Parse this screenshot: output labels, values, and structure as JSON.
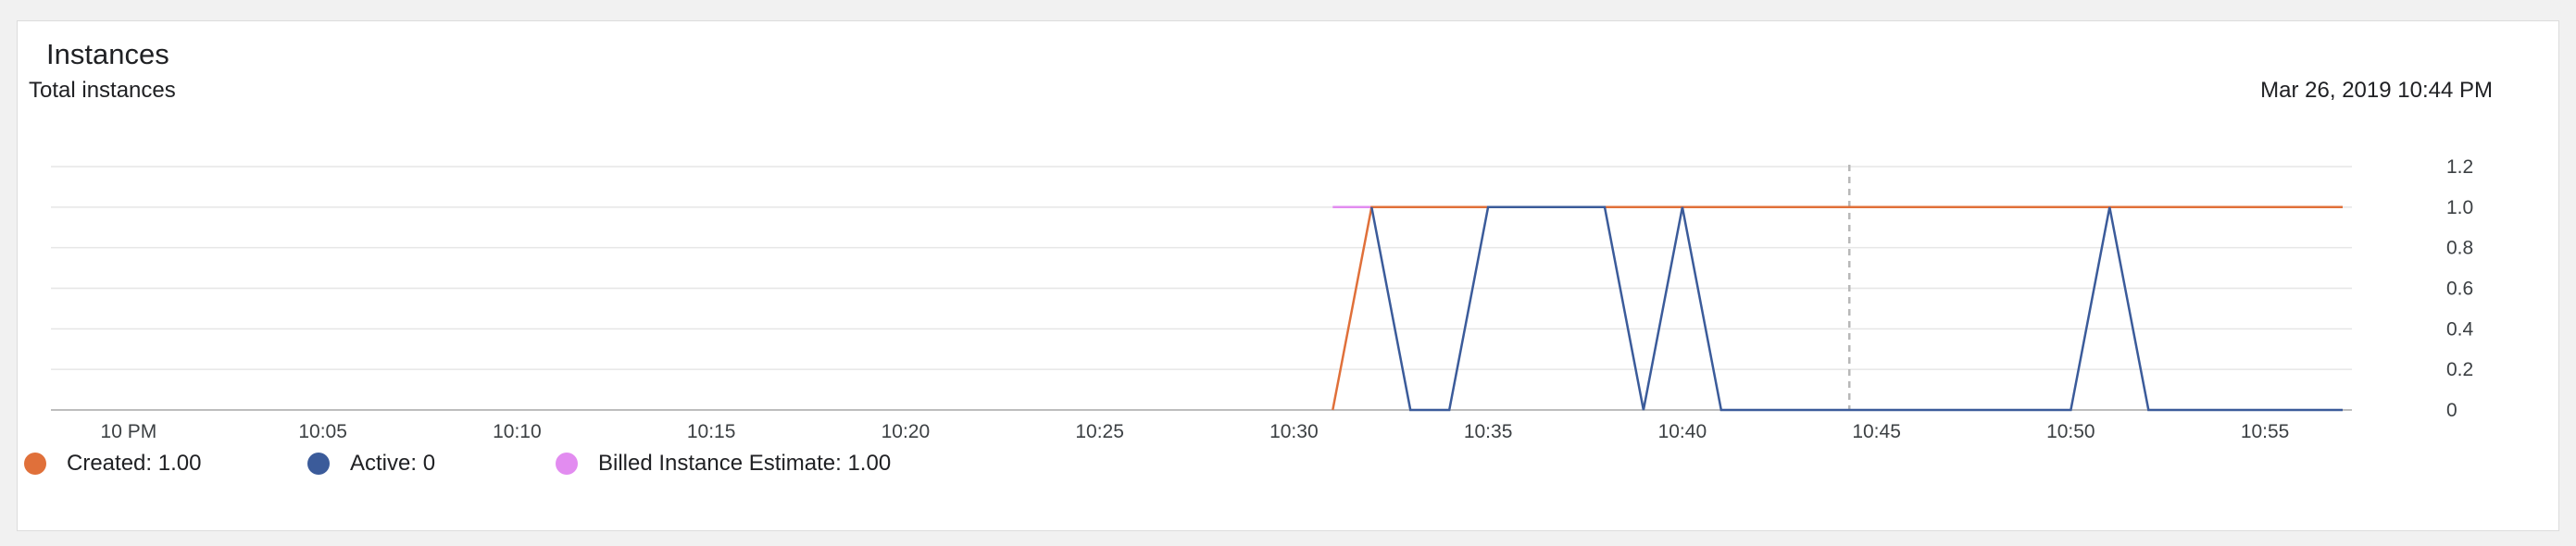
{
  "card": {
    "title": "Instances"
  },
  "chart_data": {
    "type": "line",
    "title": "Total instances",
    "timestamp": "Mar 26, 2019 10:44 PM",
    "x_range": [
      "21:58",
      "22:57"
    ],
    "y_range": [
      0,
      1.2
    ],
    "grid": true,
    "x_ticks": [
      {
        "t": "22:00",
        "label": "10 PM"
      },
      {
        "t": "22:05",
        "label": "10:05"
      },
      {
        "t": "22:10",
        "label": "10:10"
      },
      {
        "t": "22:15",
        "label": "10:15"
      },
      {
        "t": "22:20",
        "label": "10:20"
      },
      {
        "t": "22:25",
        "label": "10:25"
      },
      {
        "t": "22:30",
        "label": "10:30"
      },
      {
        "t": "22:35",
        "label": "10:35"
      },
      {
        "t": "22:40",
        "label": "10:40"
      },
      {
        "t": "22:45",
        "label": "10:45"
      },
      {
        "t": "22:50",
        "label": "10:50"
      },
      {
        "t": "22:55",
        "label": "10:55"
      }
    ],
    "y_ticks": [
      {
        "value": 0,
        "label": "0"
      },
      {
        "value": 0.2,
        "label": "0.2"
      },
      {
        "value": 0.4,
        "label": "0.4"
      },
      {
        "value": 0.6,
        "label": "0.6"
      },
      {
        "value": 0.8,
        "label": "0.8"
      },
      {
        "value": 1.0,
        "label": "1.0"
      },
      {
        "value": 1.2,
        "label": "1.2"
      }
    ],
    "cursor_time": "22:44.3",
    "series": [
      {
        "name": "Billed Instance Estimate",
        "legend_value": "1.00",
        "color": "#e28cf0",
        "points": [
          [
            "22:31",
            1
          ],
          [
            "22:32",
            1
          ]
        ]
      },
      {
        "name": "Created",
        "legend_value": "1.00",
        "color": "#e0703a",
        "points": [
          [
            "22:31",
            0
          ],
          [
            "22:32",
            1
          ],
          [
            "22:57",
            1
          ]
        ]
      },
      {
        "name": "Active",
        "legend_value": "0",
        "color": "#3b5b9a",
        "points": [
          [
            "22:32",
            1
          ],
          [
            "22:33",
            0
          ],
          [
            "22:34",
            0
          ],
          [
            "22:35",
            1
          ],
          [
            "22:38",
            1
          ],
          [
            "22:39",
            0
          ],
          [
            "22:40",
            1
          ],
          [
            "22:41",
            0
          ],
          [
            "22:50",
            0
          ],
          [
            "22:51",
            1
          ],
          [
            "22:52",
            0
          ],
          [
            "22:57",
            0
          ]
        ]
      }
    ]
  },
  "legend": [
    {
      "series": "Created",
      "label": "Created: 1.00",
      "color": "#e0703a"
    },
    {
      "series": "Active",
      "label": "Active: 0",
      "color": "#3b5b9a"
    },
    {
      "series": "Billed Instance Estimate",
      "label": "Billed Instance Estimate: 1.00",
      "color": "#e28cf0"
    }
  ]
}
